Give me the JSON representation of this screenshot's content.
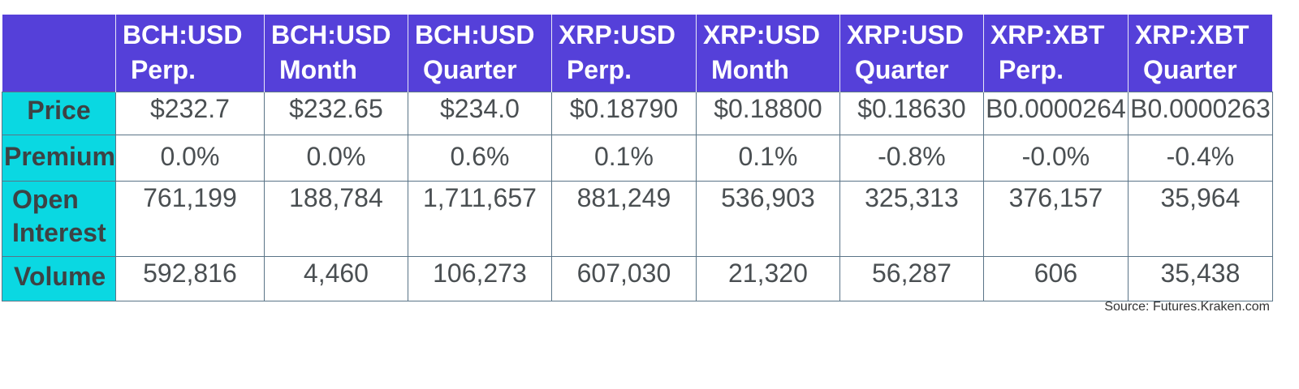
{
  "table": {
    "columns": [
      {
        "line1": "BCH:USD",
        "line2": "Perp."
      },
      {
        "line1": "BCH:USD",
        "line2": "Month"
      },
      {
        "line1": "BCH:USD",
        "line2": "Quarter"
      },
      {
        "line1": "XRP:USD",
        "line2": "Perp."
      },
      {
        "line1": "XRP:USD",
        "line2": "Month"
      },
      {
        "line1": "XRP:USD",
        "line2": "Quarter"
      },
      {
        "line1": "XRP:XBT",
        "line2": "Perp."
      },
      {
        "line1": "XRP:XBT",
        "line2": "Quarter"
      }
    ],
    "rows": [
      {
        "label": [
          "Price"
        ],
        "values": [
          "$232.7",
          "$232.65",
          "$234.0",
          "$0.18790",
          "$0.18800",
          "$0.18630",
          "B0.0000264",
          "B0.0000263"
        ]
      },
      {
        "label": [
          "Premium"
        ],
        "values": [
          "0.0%",
          "0.0%",
          "0.6%",
          "0.1%",
          "0.1%",
          "-0.8%",
          "-0.0%",
          "-0.4%"
        ]
      },
      {
        "label": [
          "Open",
          "Interest"
        ],
        "values": [
          "761,199",
          "188,784",
          "1,711,657",
          "881,249",
          "536,903",
          "325,313",
          "376,157",
          "35,964"
        ]
      },
      {
        "label": [
          "Volume"
        ],
        "values": [
          "592,816",
          "4,460",
          "106,273",
          "607,030",
          "21,320",
          "56,287",
          "606",
          "35,438"
        ]
      }
    ]
  },
  "source": "Source: Futures.Kraken.com",
  "colors": {
    "header_bg": "#5540d9",
    "rowhead_bg": "#0ad8e2",
    "border": "#5a7487"
  }
}
